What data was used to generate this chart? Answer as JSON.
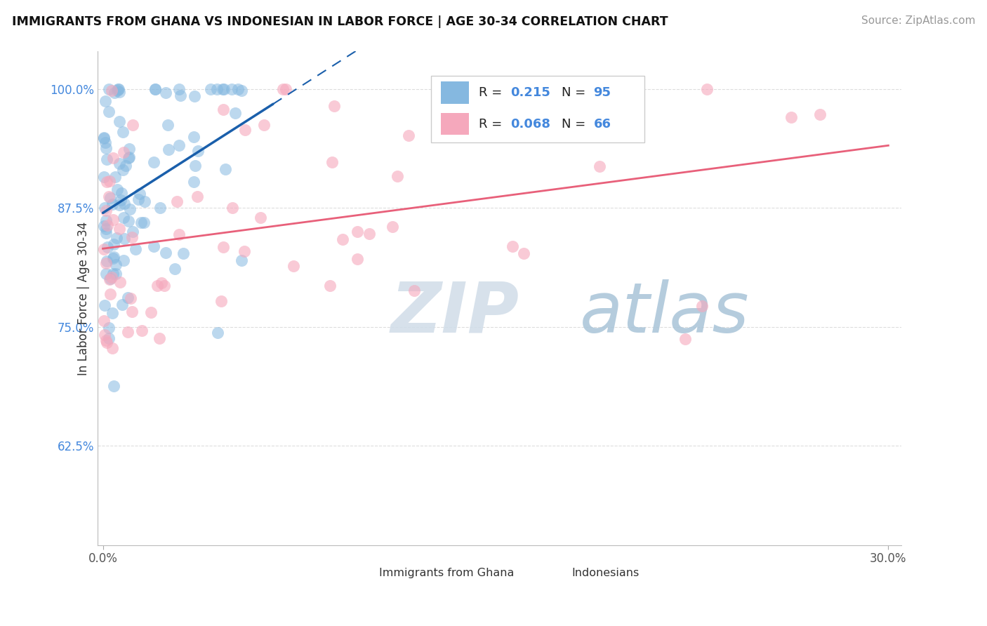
{
  "title": "IMMIGRANTS FROM GHANA VS INDONESIAN IN LABOR FORCE | AGE 30-34 CORRELATION CHART",
  "source": "Source: ZipAtlas.com",
  "ylabel": "In Labor Force | Age 30-34",
  "legend_label1": "Immigrants from Ghana",
  "legend_label2": "Indonesians",
  "R1": 0.215,
  "N1": 95,
  "R2": 0.068,
  "N2": 66,
  "xlim": [
    -0.002,
    0.305
  ],
  "ylim": [
    0.52,
    1.04
  ],
  "ytick_positions": [
    0.625,
    0.75,
    0.875,
    1.0
  ],
  "ytick_labels": [
    "62.5%",
    "75.0%",
    "87.5%",
    "100.0%"
  ],
  "xtick_positions": [
    0.0,
    0.3
  ],
  "xtick_labels": [
    "0.0%",
    "30.0%"
  ],
  "color_ghana": "#85B8E0",
  "color_indonesian": "#F5A8BC",
  "trendline_color_ghana": "#1A5FAB",
  "trendline_color_indonesian": "#E8607A",
  "background_color": "#FFFFFF",
  "grid_color": "#DDDDDD",
  "watermark_zip_color": "#C8D8E8",
  "watermark_atlas_color": "#A8C4DC",
  "ghana_seed": 12345,
  "indonesian_seed": 67890
}
